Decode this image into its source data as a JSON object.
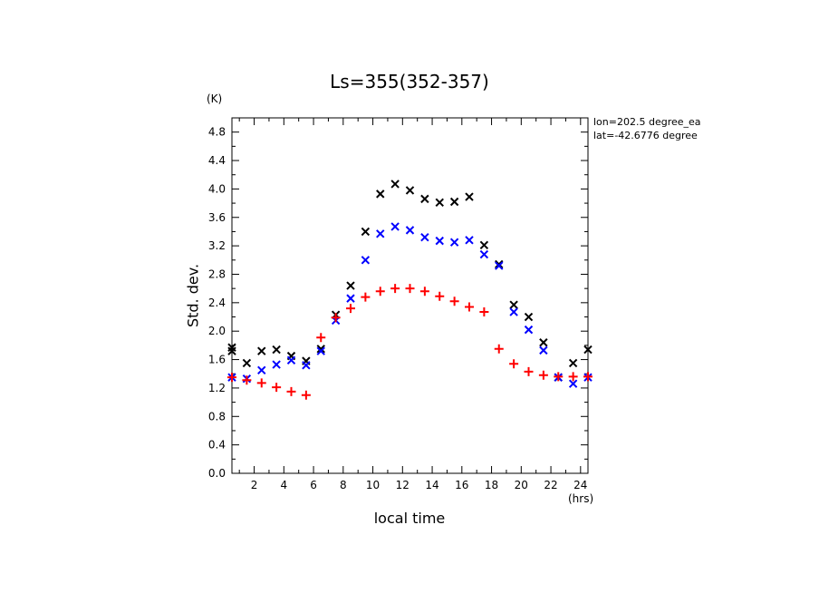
{
  "chart_data": {
    "type": "scatter",
    "title": "Ls=355(352-357)",
    "xlabel": "local time",
    "ylabel": "Std. dev.",
    "x_units": "(hrs)",
    "y_units": "(K)",
    "annotations": [
      "lon=202.5 degree_ea",
      "lat=-42.6776 degree"
    ],
    "xlim": [
      0.5,
      24.5
    ],
    "ylim": [
      0.0,
      5.0
    ],
    "x_ticks": [
      2,
      4,
      6,
      8,
      10,
      12,
      14,
      16,
      18,
      20,
      22,
      24
    ],
    "y_ticks": [
      0.0,
      0.4,
      0.8,
      1.2,
      1.6,
      2.0,
      2.4,
      2.8,
      3.2,
      3.6,
      4.0,
      4.4,
      4.8
    ],
    "grid": false,
    "series": [
      {
        "marker": "x",
        "color": "#000000",
        "points": [
          [
            0.5,
            1.72
          ],
          [
            0.5,
            1.77
          ],
          [
            1.5,
            1.55
          ],
          [
            2.5,
            1.72
          ],
          [
            3.5,
            1.74
          ],
          [
            4.5,
            1.65
          ],
          [
            5.5,
            1.58
          ],
          [
            6.5,
            1.75
          ],
          [
            7.5,
            2.23
          ],
          [
            8.5,
            2.64
          ],
          [
            9.5,
            3.4
          ],
          [
            10.5,
            3.93
          ],
          [
            11.5,
            4.07
          ],
          [
            12.5,
            3.98
          ],
          [
            13.5,
            3.86
          ],
          [
            14.5,
            3.81
          ],
          [
            15.5,
            3.82
          ],
          [
            16.5,
            3.89
          ],
          [
            17.5,
            3.21
          ],
          [
            18.5,
            2.94
          ],
          [
            19.5,
            2.37
          ],
          [
            20.5,
            2.2
          ],
          [
            21.5,
            1.84
          ],
          [
            22.5,
            1.35
          ],
          [
            23.5,
            1.55
          ],
          [
            24.5,
            1.74
          ]
        ]
      },
      {
        "marker": "x",
        "color": "#0000ff",
        "points": [
          [
            0.5,
            1.35
          ],
          [
            1.5,
            1.33
          ],
          [
            2.5,
            1.45
          ],
          [
            3.5,
            1.53
          ],
          [
            4.5,
            1.59
          ],
          [
            5.5,
            1.52
          ],
          [
            6.5,
            1.72
          ],
          [
            7.5,
            2.15
          ],
          [
            8.5,
            2.46
          ],
          [
            9.5,
            3.0
          ],
          [
            10.5,
            3.37
          ],
          [
            11.5,
            3.47
          ],
          [
            12.5,
            3.42
          ],
          [
            13.5,
            3.32
          ],
          [
            14.5,
            3.27
          ],
          [
            15.5,
            3.25
          ],
          [
            16.5,
            3.28
          ],
          [
            17.5,
            3.08
          ],
          [
            18.5,
            2.92
          ],
          [
            19.5,
            2.27
          ],
          [
            20.5,
            2.02
          ],
          [
            21.5,
            1.73
          ],
          [
            22.5,
            1.35
          ],
          [
            23.5,
            1.26
          ],
          [
            24.5,
            1.35
          ]
        ]
      },
      {
        "marker": "+",
        "color": "#ff0000",
        "points": [
          [
            0.5,
            1.35
          ],
          [
            1.5,
            1.31
          ],
          [
            2.5,
            1.27
          ],
          [
            3.5,
            1.21
          ],
          [
            4.5,
            1.15
          ],
          [
            5.5,
            1.1
          ],
          [
            6.5,
            1.91
          ],
          [
            7.5,
            2.19
          ],
          [
            8.5,
            2.32
          ],
          [
            9.5,
            2.48
          ],
          [
            10.5,
            2.56
          ],
          [
            11.5,
            2.6
          ],
          [
            12.5,
            2.6
          ],
          [
            13.5,
            2.56
          ],
          [
            14.5,
            2.49
          ],
          [
            15.5,
            2.42
          ],
          [
            16.5,
            2.34
          ],
          [
            17.5,
            2.27
          ],
          [
            18.5,
            1.75
          ],
          [
            19.5,
            1.54
          ],
          [
            20.5,
            1.43
          ],
          [
            21.5,
            1.38
          ],
          [
            22.5,
            1.36
          ],
          [
            23.5,
            1.36
          ],
          [
            24.5,
            1.36
          ]
        ]
      }
    ]
  }
}
